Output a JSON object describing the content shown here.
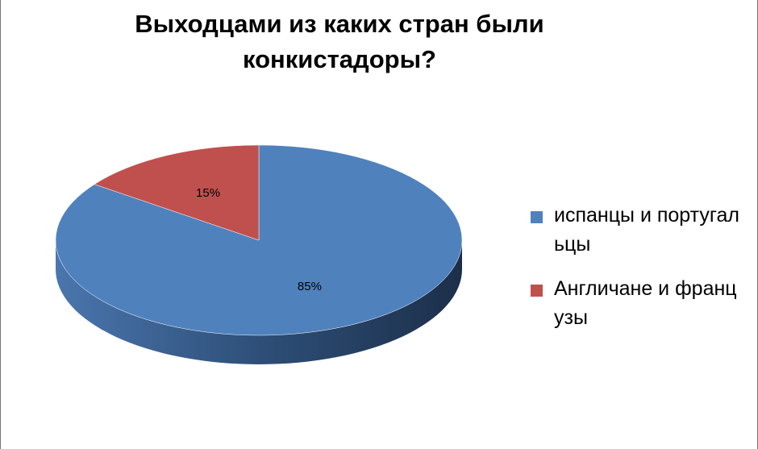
{
  "chart_data": {
    "type": "pie3d",
    "title": "Выходцами  из каких стран были конкистадоры?",
    "categories": [
      "испанцы и португальцы",
      "Англичане и французы"
    ],
    "values": [
      85,
      15
    ],
    "value_labels": [
      "85%",
      "15%"
    ],
    "colors": [
      "#4f81bd",
      "#c0504d"
    ],
    "side_colors": [
      "#2b4a70",
      "#8c3432"
    ],
    "legend": "right"
  }
}
